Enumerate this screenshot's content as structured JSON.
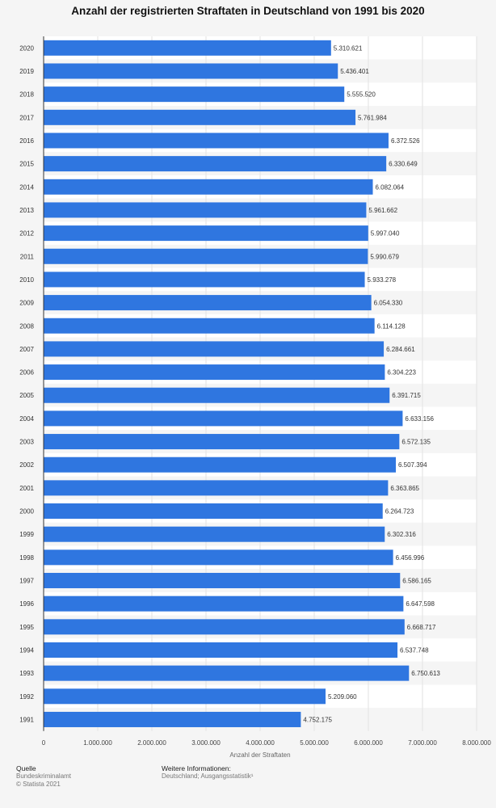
{
  "chart_data": {
    "type": "bar",
    "orientation": "horizontal",
    "title": "Anzahl der registrierten Straftaten in Deutschland von 1991 bis 2020",
    "xlabel": "Anzahl der Straftaten",
    "ylabel": "",
    "xlim": [
      0,
      8000000
    ],
    "xticks": [
      "0",
      "1.000.000",
      "2.000.000",
      "3.000.000",
      "4.000.000",
      "5.000.000",
      "6.000.000",
      "7.000.000",
      "8.000.000"
    ],
    "grid": true,
    "categories": [
      "2020",
      "2019",
      "2018",
      "2017",
      "2016",
      "2015",
      "2014",
      "2013",
      "2012",
      "2011",
      "2010",
      "2009",
      "2008",
      "2007",
      "2006",
      "2005",
      "2004",
      "2003",
      "2002",
      "2001",
      "2000",
      "1999",
      "1998",
      "1997",
      "1996",
      "1995",
      "1994",
      "1993",
      "1992",
      "1991"
    ],
    "values": [
      5310621,
      5436401,
      5555520,
      5761984,
      6372526,
      6330649,
      6082064,
      5961662,
      5997040,
      5990679,
      5933278,
      6054330,
      6114128,
      6284661,
      6304223,
      6391715,
      6633156,
      6572135,
      6507394,
      6363865,
      6264723,
      6302316,
      6456996,
      6586165,
      6647598,
      6668717,
      6537748,
      6750613,
      5209060,
      4752175
    ],
    "data_labels": [
      "5.310.621",
      "5.436.401",
      "5.555.520",
      "5.761.984",
      "6.372.526",
      "6.330.649",
      "6.082.064",
      "5.961.662",
      "5.997.040",
      "5.990.679",
      "5.933.278",
      "6.054.330",
      "6.114.128",
      "6.284.661",
      "6.304.223",
      "6.391.715",
      "6.633.156",
      "6.572.135",
      "6.507.394",
      "6.363.865",
      "6.264.723",
      "6.302.316",
      "6.456.996",
      "6.586.165",
      "6.647.598",
      "6.668.717",
      "6.537.748",
      "6.750.613",
      "5.209.060",
      "4.752.175"
    ],
    "bar_color": "#2f76e0"
  },
  "footer": {
    "source_heading": "Quelle",
    "source_lines": [
      "Bundeskriminalamt",
      "© Statista 2021"
    ],
    "info_heading": "Weitere Informationen:",
    "info_lines": [
      "Deutschland; Ausgangsstatistik¹"
    ]
  }
}
